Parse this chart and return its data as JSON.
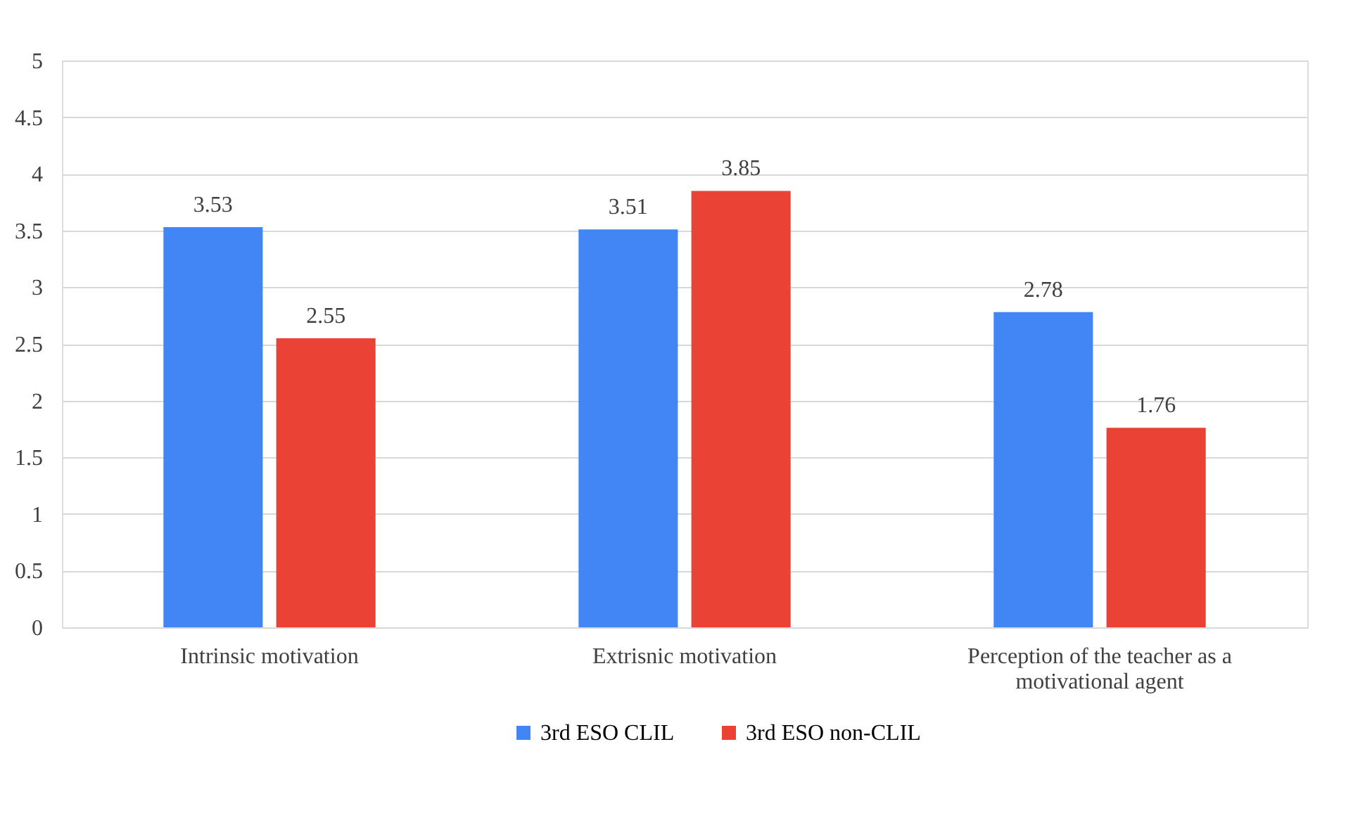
{
  "chart_data": {
    "type": "bar",
    "categories": [
      "Intrinsic motivation",
      "Extrisnic motivation",
      "Perception of the teacher as a motivational agent"
    ],
    "series": [
      {
        "name": "3rd ESO CLIL",
        "color": "#4285f4",
        "values": [
          3.53,
          3.51,
          2.78
        ]
      },
      {
        "name": "3rd ESO non-CLIL",
        "color": "#ea4335",
        "values": [
          2.55,
          3.85,
          1.76
        ]
      }
    ],
    "ylim": [
      0,
      5
    ],
    "yticks": [
      0,
      0.5,
      1,
      1.5,
      2,
      2.5,
      3,
      3.5,
      4,
      4.5,
      5
    ],
    "grid": "y",
    "legend": "bottom",
    "data_labels": true
  }
}
